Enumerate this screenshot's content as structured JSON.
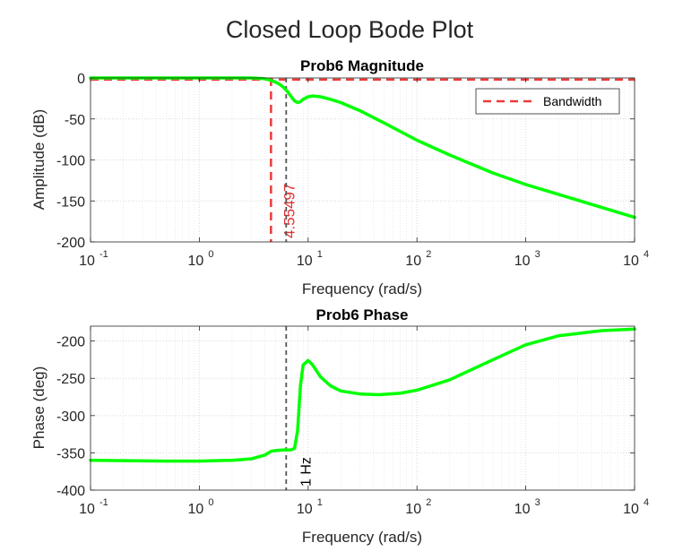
{
  "figure": {
    "title": "Closed Loop Bode Plot"
  },
  "chart_data": [
    {
      "type": "line",
      "title": "Prob6 Magnitude",
      "xlabel": "Frequency (rad/s)",
      "ylabel": "Amplitude (dB)",
      "xscale": "log",
      "xlim": [
        0.1,
        10000
      ],
      "ylim": [
        -200,
        0
      ],
      "yticks": [
        0,
        -50,
        -100,
        -150,
        -200
      ],
      "grid": true,
      "series": [
        {
          "name": "",
          "color": "#00ff00",
          "x": [
            0.1,
            0.2,
            0.5,
            1,
            2,
            3,
            4,
            4.55,
            5,
            5.5,
            6,
            6.5,
            7,
            7.5,
            8,
            8.5,
            9,
            10,
            11,
            13,
            16,
            20,
            30,
            50,
            100,
            200,
            500,
            1000,
            2000,
            5000,
            10000
          ],
          "y": [
            0,
            0,
            0,
            0,
            0.5,
            0.8,
            -1,
            -3,
            -5,
            -8,
            -12,
            -17,
            -23,
            -28,
            -30,
            -29,
            -26,
            -23,
            -22,
            -23,
            -26,
            -30,
            -40,
            -55,
            -76,
            -94,
            -116,
            -130,
            -142,
            -158,
            -170
          ]
        }
      ],
      "reference_lines": [
        {
          "orientation": "vertical",
          "x": 4.55497,
          "label": "4.55497",
          "color": "#ec3a3a",
          "style": "dashed"
        },
        {
          "orientation": "horizontal",
          "y": -2,
          "color": "#ec3a3a",
          "style": "dashed"
        },
        {
          "orientation": "vertical",
          "x": 6.2832,
          "color": "#555555",
          "style": "dashed"
        }
      ],
      "legend": {
        "entries": [
          "Bandwidth"
        ],
        "placement": "top-right"
      }
    },
    {
      "type": "line",
      "title": "Prob6 Phase",
      "xlabel": "Frequency (rad/s)",
      "ylabel": "Phase (deg)",
      "xscale": "log",
      "xlim": [
        0.1,
        10000
      ],
      "ylim": [
        -400,
        -180
      ],
      "yticks": [
        -200,
        -250,
        -300,
        -350,
        -400
      ],
      "grid": true,
      "series": [
        {
          "name": "",
          "color": "#00ff00",
          "x": [
            0.1,
            0.2,
            0.5,
            1,
            2,
            3,
            4,
            4.55,
            5,
            6,
            7,
            7.5,
            8,
            8.5,
            9,
            10,
            11,
            13,
            16,
            20,
            30,
            45,
            70,
            100,
            200,
            500,
            1000,
            2000,
            5000,
            10000
          ],
          "y": [
            -360,
            -360.5,
            -361,
            -361,
            -360,
            -358,
            -353,
            -348,
            -347,
            -346,
            -346,
            -344,
            -320,
            -260,
            -232,
            -226,
            -232,
            -248,
            -260,
            -267,
            -271,
            -272,
            -270,
            -266,
            -252,
            -225,
            -205,
            -193,
            -186,
            -184
          ]
        }
      ],
      "reference_lines": [
        {
          "orientation": "vertical",
          "x": 6.2832,
          "label": "1 Hz",
          "color": "#555555",
          "style": "dashed"
        }
      ]
    }
  ]
}
